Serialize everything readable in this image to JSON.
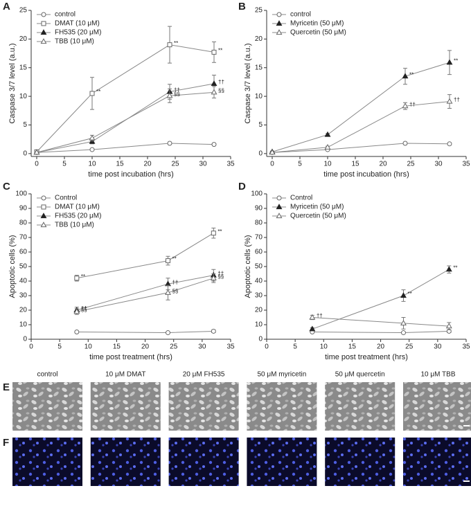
{
  "chart_data": [
    {
      "type": "line",
      "panel": "A",
      "xlabel": "time post incubation (hrs)",
      "ylabel": "Caspase 3/7 level (a.u.)",
      "x": [
        0,
        10,
        24,
        32
      ],
      "xlim": [
        -1,
        35
      ],
      "xticks": [
        0,
        5,
        10,
        15,
        20,
        25,
        30,
        35
      ],
      "ylim": [
        -0.5,
        25
      ],
      "yticks": [
        0,
        5,
        10,
        15,
        20,
        25
      ],
      "legend": "upper left",
      "series": [
        {
          "name": "control",
          "color": "#666666",
          "marker": "circle",
          "filled": false,
          "values": [
            0.2,
            0.7,
            1.8,
            1.6
          ],
          "errors": [
            0.1,
            0.1,
            0.2,
            0.2
          ],
          "annotations": [
            null,
            null,
            null,
            null
          ]
        },
        {
          "name": "DMAT (10 μM)",
          "color": "#666666",
          "marker": "square",
          "filled": false,
          "values": [
            0.3,
            10.5,
            19,
            17.7
          ],
          "errors": [
            0.1,
            2.8,
            3.2,
            1.8
          ],
          "annotations": [
            null,
            "**",
            "**",
            "**"
          ]
        },
        {
          "name": "FH535 (20 μM)",
          "color": "#222222",
          "marker": "triangle",
          "filled": true,
          "values": [
            0.2,
            2.1,
            10.8,
            12.2
          ],
          "errors": [
            0.1,
            0.4,
            1.3,
            1.5
          ],
          "annotations": [
            null,
            null,
            "††",
            "††"
          ]
        },
        {
          "name": "TBB (10 μM)",
          "color": "#666666",
          "marker": "triangle",
          "filled": false,
          "values": [
            0.2,
            2.7,
            10.1,
            10.7
          ],
          "errors": [
            0.1,
            0.5,
            1.2,
            1.0
          ],
          "annotations": [
            null,
            null,
            "§§",
            "§§"
          ]
        }
      ]
    },
    {
      "type": "line",
      "panel": "B",
      "xlabel": "time post incubation (hrs)",
      "ylabel": "Caspase 3/7 level (a.u.)",
      "x": [
        0,
        10,
        24,
        32
      ],
      "xlim": [
        -1,
        35
      ],
      "xticks": [
        0,
        5,
        10,
        15,
        20,
        25,
        30,
        35
      ],
      "ylim": [
        -0.5,
        25
      ],
      "yticks": [
        0,
        5,
        10,
        15,
        20,
        25
      ],
      "legend": "upper left",
      "series": [
        {
          "name": "control",
          "color": "#666666",
          "marker": "circle",
          "filled": false,
          "values": [
            0.2,
            0.7,
            1.8,
            1.7
          ],
          "errors": [
            0.1,
            0.1,
            0.2,
            0.2
          ],
          "annotations": [
            null,
            null,
            null,
            null
          ]
        },
        {
          "name": "Myricetin (50 μM)",
          "color": "#222222",
          "marker": "triangle",
          "filled": true,
          "values": [
            0.3,
            3.3,
            13.5,
            15.9
          ],
          "errors": [
            0.1,
            0.2,
            1.4,
            2.1
          ],
          "annotations": [
            null,
            null,
            "**",
            "**"
          ]
        },
        {
          "name": "Quercetin (50 μM)",
          "color": "#666666",
          "marker": "triangle",
          "filled": false,
          "values": [
            0.2,
            1.1,
            8.3,
            9.1
          ],
          "errors": [
            0.1,
            0.2,
            0.6,
            1.2
          ],
          "annotations": [
            null,
            null,
            "††",
            "††"
          ]
        }
      ]
    },
    {
      "type": "line",
      "panel": "C",
      "xlabel": "time post treatment (hrs)",
      "ylabel": "Apoptotic cells (%)",
      "x": [
        8,
        24,
        32
      ],
      "xlim": [
        0,
        35
      ],
      "xticks": [
        0,
        5,
        10,
        15,
        20,
        25,
        30,
        35
      ],
      "ylim": [
        0,
        100
      ],
      "yticks": [
        0,
        10,
        20,
        30,
        40,
        50,
        60,
        70,
        80,
        90,
        100
      ],
      "legend": "upper left",
      "series": [
        {
          "name": "Control",
          "color": "#666666",
          "marker": "circle",
          "filled": false,
          "values": [
            5,
            4.5,
            5.5
          ],
          "errors": [
            0.5,
            0.5,
            1
          ],
          "annotations": [
            null,
            null,
            null
          ]
        },
        {
          "name": "DMAT (10 μM)",
          "color": "#666666",
          "marker": "square",
          "filled": false,
          "values": [
            42,
            54,
            73
          ],
          "errors": [
            2,
            3,
            3.5
          ],
          "annotations": [
            "**",
            "**",
            "**"
          ]
        },
        {
          "name": "FH535 (20 μM)",
          "color": "#222222",
          "marker": "triangle",
          "filled": true,
          "values": [
            20,
            38,
            44
          ],
          "errors": [
            2,
            4,
            4
          ],
          "annotations": [
            "††",
            "††",
            "††"
          ]
        },
        {
          "name": "TBB (10 μM)",
          "color": "#666666",
          "marker": "triangle",
          "filled": false,
          "values": [
            19,
            32,
            42
          ],
          "errors": [
            2,
            5,
            3
          ],
          "annotations": [
            "§§",
            "§§",
            "§§"
          ]
        }
      ]
    },
    {
      "type": "line",
      "panel": "D",
      "xlabel": "time post treatment (hrs)",
      "ylabel": "Apoptotic cells (%)",
      "x": [
        8,
        24,
        32
      ],
      "xlim": [
        0,
        35
      ],
      "xticks": [
        0,
        5,
        10,
        15,
        20,
        25,
        30,
        35
      ],
      "ylim": [
        0,
        100
      ],
      "yticks": [
        0,
        10,
        20,
        30,
        40,
        50,
        60,
        70,
        80,
        90,
        100
      ],
      "legend": "upper left",
      "series": [
        {
          "name": "Control",
          "color": "#666666",
          "marker": "circle",
          "filled": false,
          "values": [
            5,
            4.5,
            5.5
          ],
          "errors": [
            0.5,
            0.5,
            1
          ],
          "annotations": [
            null,
            null,
            null
          ]
        },
        {
          "name": "Myricetin (50 μM)",
          "color": "#222222",
          "marker": "triangle",
          "filled": true,
          "values": [
            7,
            30,
            48
          ],
          "errors": [
            1,
            4,
            2.5
          ],
          "annotations": [
            null,
            "**",
            "**"
          ]
        },
        {
          "name": "Quercetin (50 μM)",
          "color": "#666666",
          "marker": "triangle",
          "filled": false,
          "values": [
            15,
            11,
            9
          ],
          "errors": [
            1.5,
            4,
            2.5
          ],
          "annotations": [
            "††",
            null,
            null
          ]
        }
      ]
    }
  ],
  "images": {
    "rows": [
      "E",
      "F"
    ],
    "columns": [
      "control",
      "10 μM DMAT",
      "20 μM FH535",
      "50 μM myricetin",
      "50 μM quercetin",
      "10 μM TBB"
    ]
  }
}
